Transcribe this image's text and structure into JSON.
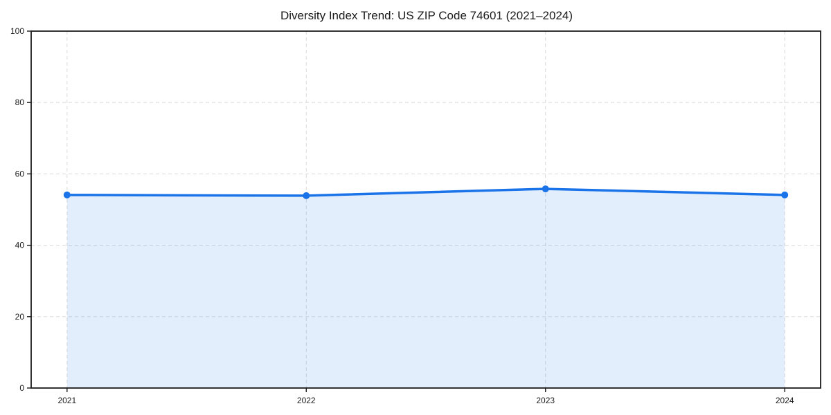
{
  "chart_data": {
    "type": "area",
    "title": "Diversity Index Trend: US ZIP Code 74601 (2021–2024)",
    "categories": [
      "2021",
      "2022",
      "2023",
      "2024"
    ],
    "series": [
      {
        "name": "Diversity Index",
        "values": [
          54.1,
          53.9,
          55.8,
          54.1
        ]
      }
    ],
    "xlabel": "",
    "ylabel": "",
    "ylim": [
      0,
      100
    ],
    "yticks": [
      0,
      20,
      40,
      60,
      80,
      100
    ],
    "grid": true,
    "grid_line_style": "dashed",
    "legend_position": "none",
    "marker": "circle",
    "colors": {
      "line": "#1a73e8",
      "fill": "rgba(26,115,232,0.12)",
      "marker": "#1a73e8",
      "grid": "#dddddd",
      "axis": "#1b1b1b",
      "text": "#1a1a1a",
      "background": "#ffffff"
    }
  }
}
